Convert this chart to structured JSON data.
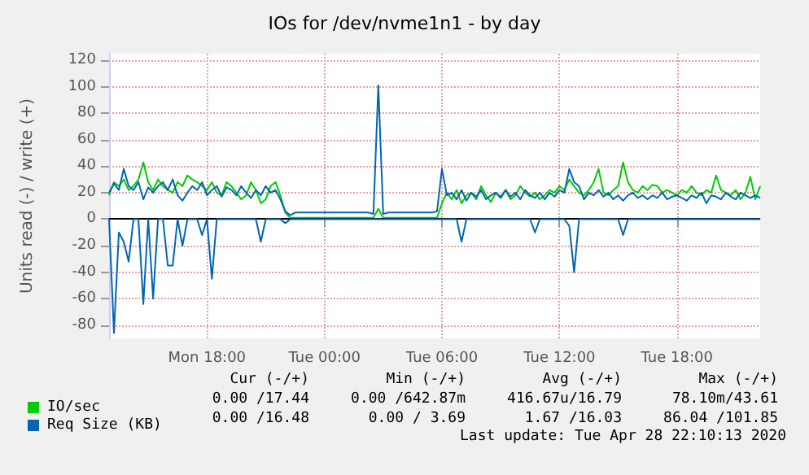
{
  "chart_data": {
    "type": "line",
    "title": "IOs for /dev/nvme1n1 - by day",
    "ylabel": "Units read (-) / write (+)",
    "x": [
      "2020-04-27T13:00",
      "2020-04-27T13:15",
      "2020-04-27T13:30",
      "2020-04-27T13:45",
      "2020-04-27T14:00",
      "2020-04-27T14:15",
      "2020-04-27T14:30",
      "2020-04-27T14:45",
      "2020-04-27T15:00",
      "2020-04-27T15:15",
      "2020-04-27T15:30",
      "2020-04-27T15:45",
      "2020-04-27T16:00",
      "2020-04-27T16:15",
      "2020-04-27T16:30",
      "2020-04-27T16:45",
      "2020-04-27T17:00",
      "2020-04-27T17:15",
      "2020-04-27T17:30",
      "2020-04-27T17:45",
      "2020-04-27T18:00",
      "2020-04-27T18:15",
      "2020-04-27T18:30",
      "2020-04-27T18:45",
      "2020-04-27T19:00",
      "2020-04-27T19:15",
      "2020-04-27T19:30",
      "2020-04-27T19:45",
      "2020-04-27T20:00",
      "2020-04-27T20:15",
      "2020-04-27T20:30",
      "2020-04-27T20:45",
      "2020-04-27T21:00",
      "2020-04-27T21:15",
      "2020-04-27T21:30",
      "2020-04-27T21:45",
      "2020-04-27T22:00",
      "2020-04-27T22:15",
      "2020-04-27T22:30",
      "2020-04-27T22:45",
      "2020-04-27T23:00",
      "2020-04-27T23:15",
      "2020-04-27T23:30",
      "2020-04-27T23:45",
      "2020-04-28T00:00",
      "2020-04-28T00:15",
      "2020-04-28T00:30",
      "2020-04-28T00:45",
      "2020-04-28T01:00",
      "2020-04-28T01:15",
      "2020-04-28T01:30",
      "2020-04-28T01:45",
      "2020-04-28T02:00",
      "2020-04-28T02:15",
      "2020-04-28T02:30",
      "2020-04-28T02:45",
      "2020-04-28T03:00",
      "2020-04-28T03:15",
      "2020-04-28T03:30",
      "2020-04-28T03:45",
      "2020-04-28T04:00",
      "2020-04-28T04:15",
      "2020-04-28T04:30",
      "2020-04-28T04:45",
      "2020-04-28T05:00",
      "2020-04-28T05:15",
      "2020-04-28T05:30",
      "2020-04-28T05:45",
      "2020-04-28T06:00",
      "2020-04-28T06:15",
      "2020-04-28T06:30",
      "2020-04-28T06:45",
      "2020-04-28T07:00",
      "2020-04-28T07:15",
      "2020-04-28T07:30",
      "2020-04-28T07:45",
      "2020-04-28T08:00",
      "2020-04-28T08:15",
      "2020-04-28T08:30",
      "2020-04-28T08:45",
      "2020-04-28T09:00",
      "2020-04-28T09:15",
      "2020-04-28T09:30",
      "2020-04-28T09:45",
      "2020-04-28T10:00",
      "2020-04-28T10:15",
      "2020-04-28T10:30",
      "2020-04-28T10:45",
      "2020-04-28T11:00",
      "2020-04-28T11:15",
      "2020-04-28T11:30",
      "2020-04-28T11:45",
      "2020-04-28T12:00",
      "2020-04-28T12:15",
      "2020-04-28T12:30",
      "2020-04-28T12:45",
      "2020-04-28T13:00",
      "2020-04-28T13:15",
      "2020-04-28T13:30",
      "2020-04-28T13:45",
      "2020-04-28T14:00",
      "2020-04-28T14:15",
      "2020-04-28T14:30",
      "2020-04-28T14:45",
      "2020-04-28T15:00",
      "2020-04-28T15:15",
      "2020-04-28T15:30",
      "2020-04-28T15:45",
      "2020-04-28T16:00",
      "2020-04-28T16:15",
      "2020-04-28T16:30",
      "2020-04-28T16:45",
      "2020-04-28T17:00",
      "2020-04-28T17:15",
      "2020-04-28T17:30",
      "2020-04-28T17:45",
      "2020-04-28T18:00",
      "2020-04-28T18:15",
      "2020-04-28T18:30",
      "2020-04-28T18:45",
      "2020-04-28T19:00",
      "2020-04-28T19:15",
      "2020-04-28T19:30",
      "2020-04-28T19:45",
      "2020-04-28T20:00",
      "2020-04-28T20:15",
      "2020-04-28T20:30",
      "2020-04-28T20:45",
      "2020-04-28T21:00",
      "2020-04-28T21:15",
      "2020-04-28T21:30",
      "2020-04-28T21:45",
      "2020-04-28T22:00",
      "2020-04-28T22:15"
    ],
    "series": [
      {
        "name": "IO/sec",
        "color": "#00cc00",
        "values": [
          18,
          28,
          25,
          30,
          22,
          25,
          30,
          43,
          28,
          22,
          30,
          25,
          22,
          20,
          28,
          25,
          33,
          30,
          28,
          25,
          22,
          28,
          20,
          18,
          28,
          25,
          20,
          15,
          18,
          28,
          22,
          12,
          15,
          25,
          28,
          18,
          5,
          1,
          1,
          1,
          1,
          1,
          1,
          1,
          1,
          1,
          1,
          1,
          1,
          1,
          1,
          1,
          1,
          1,
          1,
          8,
          1,
          1,
          1,
          1,
          1,
          1,
          1,
          1,
          1,
          1,
          1,
          1,
          12,
          20,
          15,
          22,
          12,
          18,
          20,
          15,
          25,
          18,
          13,
          20,
          17,
          22,
          15,
          18,
          25,
          20,
          17,
          20,
          15,
          18,
          22,
          20,
          25,
          22,
          30,
          25,
          20,
          18,
          22,
          28,
          38,
          20,
          18,
          22,
          25,
          43,
          28,
          22,
          20,
          25,
          22,
          26,
          25,
          20,
          22,
          20,
          18,
          22,
          20,
          25,
          20,
          18,
          22,
          20,
          33,
          22,
          20,
          18,
          22,
          15,
          20,
          32,
          15,
          25
        ]
      },
      {
        "name": "Req Size (KB)",
        "color": "#0066b3",
        "values": [
          20,
          27,
          22,
          38,
          25,
          22,
          28,
          15,
          24,
          20,
          25,
          28,
          22,
          30,
          18,
          14,
          20,
          25,
          22,
          28,
          18,
          22,
          25,
          17,
          24,
          22,
          18,
          25,
          20,
          16,
          22,
          18,
          25,
          20,
          22,
          15,
          6,
          3,
          5,
          5,
          5,
          5,
          5,
          5,
          5,
          5,
          5,
          5,
          5,
          5,
          5,
          5,
          5,
          5,
          4,
          101,
          4,
          5,
          5,
          5,
          5,
          5,
          5,
          5,
          5,
          5,
          5,
          6,
          38,
          18,
          20,
          15,
          22,
          14,
          20,
          17,
          22,
          15,
          18,
          20,
          16,
          22,
          17,
          20,
          15,
          22,
          18,
          16,
          20,
          15,
          20,
          17,
          22,
          20,
          38,
          28,
          25,
          15,
          20,
          18,
          22,
          17,
          20,
          15,
          18,
          14,
          18,
          20,
          16,
          18,
          15,
          18,
          16,
          20,
          15,
          17,
          18,
          16,
          14,
          18,
          16,
          20,
          12,
          18,
          17,
          15,
          20,
          17,
          15,
          20,
          18,
          16,
          18,
          16
        ]
      },
      {
        "color": "#0066b3",
        "values": [
          0,
          -86,
          -10,
          -17,
          -32,
          0,
          0,
          -64,
          0,
          -60,
          0,
          0,
          -35,
          -35,
          0,
          -20,
          0,
          0,
          0,
          -12,
          0,
          -45,
          0,
          0,
          0,
          0,
          0,
          0,
          0,
          0,
          0,
          -17,
          0,
          0,
          0,
          0,
          -3,
          0,
          0,
          0,
          0,
          0,
          0,
          0,
          0,
          0,
          0,
          0,
          0,
          0,
          0,
          0,
          0,
          0,
          0,
          0,
          0,
          0,
          0,
          0,
          0,
          0,
          0,
          0,
          0,
          0,
          0,
          0,
          0,
          0,
          0,
          0,
          -17,
          0,
          0,
          0,
          0,
          0,
          0,
          0,
          0,
          0,
          0,
          0,
          0,
          0,
          0,
          -10,
          0,
          0,
          0,
          0,
          0,
          0,
          -5,
          -40,
          0,
          0,
          0,
          0,
          0,
          0,
          0,
          0,
          0,
          -12,
          0,
          0,
          0,
          0,
          0,
          0,
          0,
          0,
          0,
          0,
          0,
          0,
          0,
          0,
          0,
          0,
          0,
          0,
          0,
          0,
          0,
          0,
          0,
          0,
          0,
          0,
          0,
          0
        ]
      }
    ],
    "xlim": [
      "2020-04-27T13:00",
      "2020-04-28T22:15"
    ],
    "xticks": [
      {
        "value": "2020-04-27T18:00",
        "label": "Mon 18:00"
      },
      {
        "value": "2020-04-28T00:00",
        "label": "Tue 00:00"
      },
      {
        "value": "2020-04-28T06:00",
        "label": "Tue 06:00"
      },
      {
        "value": "2020-04-28T12:00",
        "label": "Tue 12:00"
      },
      {
        "value": "2020-04-28T18:00",
        "label": "Tue 18:00"
      }
    ],
    "ylim": [
      -90,
      125
    ],
    "yticks": [
      -80,
      -60,
      -40,
      -20,
      0,
      20,
      40,
      60,
      80,
      100,
      120
    ],
    "ref_lines": [
      {
        "axis": "y",
        "value": 0,
        "color": "#000000"
      }
    ],
    "grid": true,
    "legend": "bottom left",
    "marker": "none",
    "line_style": "solid",
    "annotations": [
      "Cur (-/+)",
      "Min (-/+)",
      "Avg (-/+)",
      "Max (-/+)",
      "0.00 /17.44",
      "0.00 /642.87m",
      "416.67u/16.79",
      "78.10m/43.61",
      "0.00 /16.48",
      "0.00 / 3.69",
      "1.67 /16.03",
      "86.04 /101.85",
      "Last update: Tue Apr 28 22:10:13 2020"
    ]
  }
}
